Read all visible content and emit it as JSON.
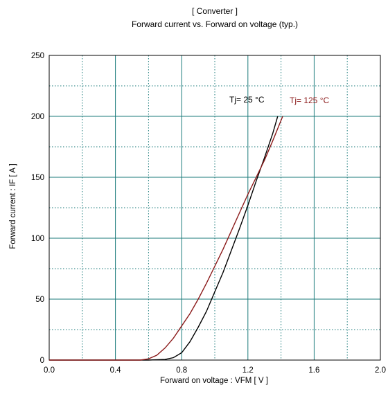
{
  "chart_data": {
    "type": "line",
    "title": "[ Converter ]",
    "subtitle": "Forward current  vs.  Forward on voltage  (typ.)",
    "xlabel": "Forward on voltage  :  VFM  [ V ]",
    "ylabel": "Forward current  :  IF  [ A ]",
    "xlim": [
      0.0,
      2.0
    ],
    "ylim": [
      0,
      250
    ],
    "xticks": [
      "0.0",
      "0.4",
      "0.8",
      "1.2",
      "1.6",
      "2.0"
    ],
    "yticks": [
      "0",
      "50",
      "100",
      "150",
      "200",
      "250"
    ],
    "grid": true,
    "series": [
      {
        "name": "Tj= 25 °C",
        "color": "#000000",
        "x": [
          0.6,
          0.7,
          0.75,
          0.8,
          0.85,
          0.9,
          0.95,
          1.0,
          1.05,
          1.1,
          1.15,
          1.2,
          1.25,
          1.3,
          1.35,
          1.38
        ],
        "y": [
          0,
          0.5,
          2,
          6,
          15,
          27,
          40,
          56,
          72,
          90,
          108,
          127,
          147,
          166,
          186,
          200
        ]
      },
      {
        "name": "Tj= 125 °C",
        "color": "#8b1a1a",
        "x": [
          0.55,
          0.6,
          0.65,
          0.7,
          0.75,
          0.8,
          0.85,
          0.9,
          0.95,
          1.0,
          1.05,
          1.1,
          1.15,
          1.2,
          1.25,
          1.3,
          1.35,
          1.41
        ],
        "y": [
          0,
          1,
          4,
          10,
          18,
          28,
          38,
          50,
          63,
          77,
          91,
          106,
          121,
          136,
          150,
          164,
          180,
          200
        ]
      }
    ]
  }
}
